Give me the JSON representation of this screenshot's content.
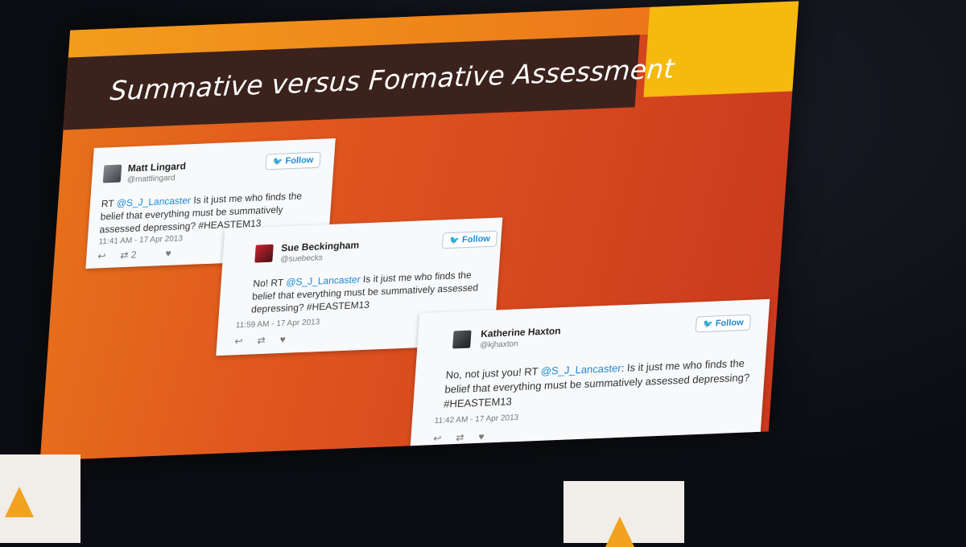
{
  "slide": {
    "title": "Summative versus Formative Assessment"
  },
  "tweets": [
    {
      "name": "Matt Lingard",
      "handle": "@mattlingard",
      "follow_label": "Follow",
      "text_prefix": "RT ",
      "mention": "@S_J_Lancaster",
      "text_body": " Is it just me who finds the belief that everything must be summatively assessed depressing? #HEASTEM13",
      "time": "11:41 AM - 17 Apr 2013",
      "retweet_count": "2"
    },
    {
      "name": "Sue Beckingham",
      "handle": "@suebecks",
      "follow_label": "Follow",
      "text_prefix": "No! RT ",
      "mention": "@S_J_Lancaster",
      "text_body": " Is it just me who finds the belief that everything must be summatively assessed depressing? #HEASTEM13",
      "time": "11:59 AM - 17 Apr 2013"
    },
    {
      "name": "Katherine Haxton",
      "handle": "@kjhaxton",
      "follow_label": "Follow",
      "text_prefix": "No, not just you! RT ",
      "mention": "@S_J_Lancaster",
      "text_body": ": Is it just me who finds the belief that everything must be summatively assessed depressing? #HEASTEM13",
      "time": "11:42 AM - 17 Apr 2013"
    }
  ],
  "colors": {
    "title_bar": "#3b221c",
    "slide_orange": "#e0561f",
    "corner_yellow": "#f6b90e",
    "twitter_blue": "#1d8ad8"
  },
  "icons": [
    "twitter-bird-icon",
    "reply-icon",
    "retweet-icon",
    "heart-icon"
  ]
}
